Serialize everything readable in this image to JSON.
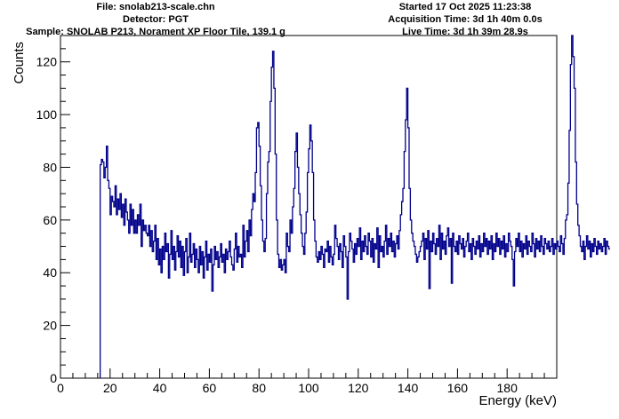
{
  "header": {
    "file": "File: snolab213-scale.chn",
    "detector": "Detector: PGT",
    "sample": "Sample: SNOLAB P213, Norament XP Floor Tile, 139.1 g",
    "started": "Started 17 Oct 2025 11:23:38",
    "acquisition": "Acquisition Time: 3d 1h 40m 0.0s",
    "live": "Live Time: 3d 1h 39m 28.9s"
  },
  "chart_data": {
    "type": "line",
    "title": "",
    "xlabel": "Energy (keV)",
    "ylabel": "Counts",
    "xlim": [
      0,
      200
    ],
    "ylim": [
      0,
      130
    ],
    "xticks": [
      0,
      20,
      40,
      60,
      80,
      100,
      120,
      140,
      160,
      180
    ],
    "yticks": [
      0,
      20,
      40,
      60,
      80,
      100,
      120
    ],
    "grid": false,
    "legend": "none",
    "color": "#00008b",
    "bin_width": 0.5,
    "series": [
      {
        "x_start": 16.0,
        "values": [
          81,
          83,
          82,
          76,
          80,
          88,
          75,
          72,
          62,
          69,
          67,
          65,
          73,
          62,
          68,
          64,
          70,
          61,
          66,
          58,
          68,
          63,
          60,
          55,
          66,
          58,
          64,
          55,
          60,
          55,
          62,
          58,
          66,
          50,
          60,
          56,
          58,
          55,
          54,
          58,
          50,
          56,
          48,
          52,
          58,
          45,
          53,
          43,
          49,
          40,
          50,
          45,
          55,
          48,
          51,
          38,
          47,
          56,
          45,
          50,
          41,
          48,
          54,
          46,
          52,
          42,
          50,
          39,
          48,
          53,
          40,
          46,
          55,
          44,
          47,
          51,
          42,
          49,
          45,
          40,
          50,
          43,
          48,
          38,
          46,
          52,
          41,
          47,
          44,
          49,
          33,
          43,
          50,
          45,
          48,
          42,
          46,
          51,
          44,
          47,
          40,
          49,
          45,
          48,
          52,
          46,
          43,
          41,
          49,
          55,
          44,
          50,
          46,
          47,
          42,
          58,
          46,
          52,
          56,
          48,
          60,
          54,
          64,
          70,
          67,
          78,
          95,
          97,
          88,
          73,
          60,
          52,
          48,
          53,
          70,
          82,
          86,
          105,
          118,
          124,
          110,
          85,
          60,
          47,
          42,
          45,
          41,
          43,
          45,
          40,
          55,
          50,
          48,
          60,
          55,
          65,
          72,
          86,
          93,
          80,
          70,
          62,
          55,
          50,
          47,
          55,
          63,
          78,
          87,
          96,
          90,
          78,
          60,
          52,
          46,
          44,
          48,
          45,
          50,
          47,
          42,
          49,
          48,
          52,
          44,
          50,
          46,
          43,
          47,
          58,
          53,
          50,
          45,
          51,
          48,
          42,
          54,
          50,
          46,
          30,
          48,
          55,
          52,
          49,
          44,
          51,
          47,
          53,
          50,
          57,
          45,
          52,
          48,
          54,
          50,
          47,
          55,
          52,
          46,
          53,
          44,
          51,
          49,
          57,
          42,
          54,
          48,
          50,
          46,
          52,
          58,
          47,
          53,
          50,
          55,
          48,
          52,
          46,
          51,
          54,
          49,
          56,
          62,
          67,
          72,
          86,
          98,
          110,
          95,
          72,
          60,
          55,
          52,
          50,
          47,
          44,
          46,
          48,
          50,
          52,
          55,
          45,
          53,
          49,
          56,
          34,
          52,
          48,
          55,
          51,
          47,
          53,
          50,
          58,
          45,
          55,
          49,
          52,
          47,
          54,
          57,
          50,
          53,
          36,
          55,
          50,
          48,
          52,
          47,
          54,
          51,
          49,
          53,
          46,
          50,
          52,
          55,
          48,
          51,
          45,
          53,
          50,
          47,
          52,
          49,
          54,
          46,
          51,
          48,
          55,
          50,
          53,
          47,
          52,
          49,
          54,
          45,
          51,
          48,
          55,
          50,
          53,
          47,
          52,
          49,
          54,
          46,
          51,
          48,
          55,
          52,
          50,
          45,
          35,
          48,
          53,
          50,
          55,
          48,
          52,
          46,
          51,
          49,
          54,
          47,
          52,
          50,
          48,
          55,
          51,
          46,
          53,
          49,
          52,
          48,
          54,
          50,
          47,
          53,
          51,
          49,
          52,
          48,
          50,
          53,
          47,
          51,
          49,
          52,
          50,
          48,
          54,
          51,
          47,
          53,
          60,
          62,
          74,
          94,
          119,
          131,
          122,
          110,
          82,
          66,
          58,
          54,
          50,
          48,
          52,
          45,
          50,
          54,
          49,
          52,
          46,
          51,
          48,
          53,
          50,
          47,
          52,
          49,
          51,
          48,
          50,
          53,
          47,
          52,
          50,
          49
        ]
      }
    ]
  }
}
